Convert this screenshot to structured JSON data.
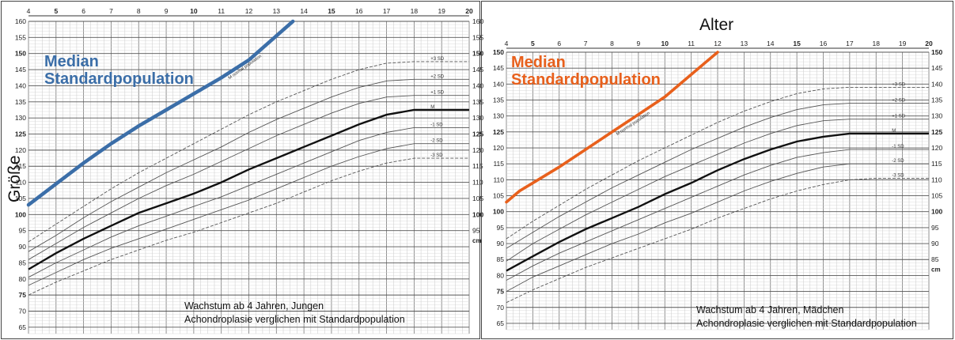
{
  "labels": {
    "x_axis_title": "Alter",
    "y_axis_title": "Größe"
  },
  "chart_data": [
    {
      "type": "line",
      "caption": [
        "Wachstum ab 4 Jahren, Jungen",
        "Achondroplasie verglichen mit Standardpopulation"
      ],
      "highlight_label": [
        "Median",
        "Standardpopulation"
      ],
      "highlight_color": "#3b6ea8",
      "xlim": [
        4,
        20
      ],
      "ylim": [
        63,
        160
      ],
      "x_ticks": [
        4,
        5,
        6,
        7,
        8,
        9,
        10,
        11,
        12,
        13,
        14,
        15,
        16,
        17,
        18,
        19,
        20
      ],
      "y_ticks_left": [
        65,
        70,
        75,
        80,
        85,
        90,
        95,
        100,
        105,
        110,
        115,
        120,
        125,
        130,
        135,
        140,
        145,
        150,
        155,
        160
      ],
      "y_ticks_right": [
        95,
        100,
        105,
        110,
        115,
        120,
        125,
        130,
        135,
        140,
        145,
        150,
        155,
        160
      ],
      "right_unit": "cm",
      "normal_median_label": "M normal population",
      "normal_median": {
        "x": [
          4,
          5,
          6,
          7,
          8,
          9,
          10,
          11,
          12,
          12.8,
          13.6
        ],
        "y": [
          103,
          109.5,
          116,
          122,
          127.5,
          132.5,
          137.5,
          142.5,
          148,
          154,
          160
        ]
      },
      "series": [
        {
          "name": "+3 SD",
          "dashed": true,
          "x": [
            4,
            5,
            6,
            7,
            8,
            9,
            10,
            11,
            12,
            13,
            14,
            15,
            16,
            17,
            18,
            20
          ],
          "y": [
            91.5,
            97,
            102.5,
            108,
            113,
            117.5,
            122,
            126.5,
            131,
            135,
            138.5,
            142,
            145,
            147,
            147.5,
            147.5
          ]
        },
        {
          "name": "+2 SD",
          "dashed": false,
          "x": [
            4,
            5,
            6,
            7,
            8,
            9,
            10,
            11,
            12,
            13,
            14,
            15,
            16,
            17,
            18,
            20
          ],
          "y": [
            88.5,
            93.5,
            99,
            104,
            108.5,
            113,
            117,
            121,
            125.5,
            129.5,
            133,
            136.5,
            139.5,
            141.5,
            142,
            142
          ]
        },
        {
          "name": "+1 SD",
          "dashed": false,
          "x": [
            4,
            5,
            6,
            7,
            8,
            9,
            10,
            11,
            12,
            13,
            14,
            15,
            16,
            17,
            18,
            20
          ],
          "y": [
            86,
            91,
            96,
            100.5,
            105,
            109,
            112.5,
            116.5,
            120.5,
            124.5,
            128,
            131.5,
            134.5,
            136.5,
            137,
            137
          ]
        },
        {
          "name": "M",
          "dashed": false,
          "bold": true,
          "x": [
            4,
            5,
            6,
            7,
            8,
            9,
            10,
            11,
            12,
            13,
            14,
            15,
            16,
            17,
            18,
            20
          ],
          "y": [
            83,
            88,
            92.5,
            96.5,
            100.5,
            103.5,
            106.5,
            110,
            114,
            117.5,
            121,
            124.5,
            128,
            131,
            132.5,
            132.5
          ]
        },
        {
          "name": "-1 SD",
          "dashed": false,
          "x": [
            4,
            5,
            6,
            7,
            8,
            9,
            10,
            11,
            12,
            13,
            14,
            15,
            16,
            17,
            18,
            20
          ],
          "y": [
            80.5,
            85,
            89,
            93,
            96.5,
            99.5,
            102.5,
            105.5,
            109,
            112.5,
            116,
            119.5,
            123,
            125.5,
            127,
            127
          ]
        },
        {
          "name": "-2 SD",
          "dashed": false,
          "x": [
            4,
            5,
            6,
            7,
            8,
            9,
            10,
            11,
            12,
            13,
            14,
            15,
            16,
            17,
            18,
            20
          ],
          "y": [
            78,
            82,
            86,
            89.5,
            92.5,
            95.5,
            98.5,
            101.5,
            104.5,
            108,
            111.5,
            115,
            118,
            120.5,
            122,
            122
          ]
        },
        {
          "name": "-3 SD",
          "dashed": true,
          "x": [
            4,
            5,
            6,
            7,
            8,
            9,
            10,
            11,
            12,
            13,
            14,
            15,
            16,
            17,
            18,
            20
          ],
          "y": [
            75,
            79,
            82.5,
            86,
            89,
            92,
            94.5,
            97.5,
            100.5,
            103.5,
            107,
            110.5,
            113.5,
            116,
            117.5,
            117.5
          ]
        }
      ]
    },
    {
      "type": "line",
      "caption": [
        "Wachstum ab 4 Jahren, Mädchen",
        "Achondroplasie verglichen mit Standardpopulation"
      ],
      "highlight_label": [
        "Median",
        "Standardpopulation"
      ],
      "highlight_color": "#e8601c",
      "xlim": [
        4,
        20
      ],
      "ylim": [
        63,
        150
      ],
      "x_ticks": [
        4,
        5,
        6,
        7,
        8,
        9,
        10,
        11,
        12,
        13,
        14,
        15,
        16,
        17,
        18,
        19,
        20
      ],
      "y_ticks_left": [
        65,
        70,
        75,
        80,
        85,
        90,
        95,
        100,
        105,
        110,
        115,
        120,
        125,
        130,
        135,
        140,
        145,
        150
      ],
      "y_ticks_right": [
        85,
        90,
        95,
        100,
        105,
        110,
        115,
        120,
        125,
        130,
        135,
        140,
        145,
        150
      ],
      "right_unit": "cm",
      "normal_median_label": "M normal population",
      "normal_median": {
        "x": [
          4,
          4.5,
          5,
          6,
          7,
          8,
          9,
          10,
          11,
          12
        ],
        "y": [
          103,
          106.5,
          109,
          114,
          119.5,
          125,
          130.5,
          136,
          143,
          150
        ]
      },
      "series": [
        {
          "name": "+3 SD",
          "dashed": true,
          "x": [
            4,
            5,
            6,
            7,
            8,
            9,
            10,
            11,
            12,
            13,
            14,
            15,
            16,
            17,
            18,
            20
          ],
          "y": [
            91.5,
            97,
            102,
            107,
            111.5,
            116,
            120,
            124,
            128,
            131.5,
            134.5,
            137,
            138.5,
            139,
            139,
            139
          ]
        },
        {
          "name": "+2 SD",
          "dashed": false,
          "x": [
            4,
            5,
            6,
            7,
            8,
            9,
            10,
            11,
            12,
            13,
            14,
            15,
            16,
            17,
            18,
            20
          ],
          "y": [
            88.5,
            93.5,
            98.5,
            103,
            107.5,
            111.5,
            115.5,
            119.5,
            123,
            126.5,
            129.5,
            132,
            133.5,
            134,
            134,
            134
          ]
        },
        {
          "name": "+1 SD",
          "dashed": false,
          "x": [
            4,
            5,
            6,
            7,
            8,
            9,
            10,
            11,
            12,
            13,
            14,
            15,
            16,
            17,
            18,
            20
          ],
          "y": [
            84.5,
            90,
            94.5,
            99,
            103,
            107,
            111,
            114.5,
            118,
            121.5,
            124.5,
            127,
            128.5,
            129,
            129,
            129
          ]
        },
        {
          "name": "M",
          "dashed": false,
          "bold": true,
          "x": [
            4,
            5,
            6,
            7,
            8,
            9,
            10,
            11,
            12,
            13,
            14,
            15,
            16,
            17,
            18,
            20
          ],
          "y": [
            81.5,
            86,
            90.5,
            94.5,
            98,
            101.5,
            105.5,
            109,
            113,
            116.5,
            119.5,
            122,
            123.5,
            124.5,
            124.5,
            124.5
          ]
        },
        {
          "name": "-1 SD",
          "dashed": false,
          "x": [
            4,
            5,
            6,
            7,
            8,
            9,
            10,
            11,
            12,
            13,
            14,
            15,
            16,
            17,
            18,
            20
          ],
          "y": [
            78.5,
            83,
            87,
            90.5,
            94,
            97.5,
            101,
            104.5,
            108,
            111.5,
            114.5,
            117,
            118.5,
            119.5,
            119.5,
            119.5
          ]
        },
        {
          "name": "-2 SD",
          "dashed": false,
          "x": [
            4,
            5,
            6,
            7,
            8,
            9,
            10,
            11,
            12,
            13,
            14,
            15,
            16,
            17,
            18,
            20
          ],
          "y": [
            75,
            79.5,
            83,
            86.5,
            90,
            93,
            96.5,
            99.5,
            103,
            106.5,
            109.5,
            112,
            114,
            115,
            115,
            115
          ]
        },
        {
          "name": "-3 SD",
          "dashed": true,
          "x": [
            4,
            5,
            6,
            7,
            8,
            9,
            10,
            11,
            12,
            13,
            14,
            15,
            16,
            17,
            18,
            20
          ],
          "y": [
            71.5,
            75.5,
            79,
            82.5,
            85.5,
            88.5,
            91.5,
            94.5,
            98,
            101,
            104,
            106.5,
            108.5,
            110,
            110.5,
            110.5
          ]
        }
      ]
    }
  ]
}
